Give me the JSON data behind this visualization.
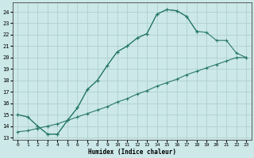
{
  "xlabel": "Humidex (Indice chaleur)",
  "bg_color": "#cce8e8",
  "grid_color": "#b0d0d0",
  "line_color": "#2a7a6a",
  "xlim": [
    -0.5,
    23.5
  ],
  "ylim": [
    12.8,
    24.8
  ],
  "xticks": [
    0,
    1,
    2,
    3,
    4,
    5,
    6,
    7,
    8,
    9,
    10,
    11,
    12,
    13,
    14,
    15,
    16,
    17,
    18,
    19,
    20,
    21,
    22,
    23
  ],
  "yticks": [
    13,
    14,
    15,
    16,
    17,
    18,
    19,
    20,
    21,
    22,
    23,
    24
  ],
  "curve1_x": [
    0,
    1,
    2,
    3,
    4,
    5,
    6,
    7,
    8,
    9,
    10,
    11,
    12,
    13,
    14,
    15,
    16,
    17,
    18
  ],
  "curve1_y": [
    15.0,
    14.8,
    14.0,
    13.3,
    13.3,
    14.5,
    15.6,
    17.2,
    18.0,
    19.3,
    20.5,
    21.0,
    21.7,
    22.1,
    23.8,
    24.2,
    24.1,
    23.6,
    22.3
  ],
  "curve2_x": [
    0,
    1,
    2,
    3,
    4,
    5,
    6,
    7,
    8,
    9,
    10,
    11,
    12,
    13,
    14,
    15,
    16,
    17,
    18,
    19,
    20,
    21,
    22,
    23
  ],
  "curve2_y": [
    15.0,
    14.8,
    14.0,
    13.3,
    13.3,
    14.5,
    15.6,
    17.2,
    18.0,
    19.3,
    20.5,
    21.0,
    21.7,
    22.1,
    23.8,
    24.2,
    24.1,
    23.6,
    22.3,
    22.2,
    21.5,
    21.5,
    20.4,
    20.0
  ],
  "curve3_x": [
    0,
    1,
    2,
    3,
    4,
    5,
    6,
    7,
    8,
    9,
    10,
    11,
    12,
    13,
    14,
    15,
    16,
    17,
    18,
    19,
    20,
    21,
    22,
    23
  ],
  "curve3_y": [
    13.5,
    13.6,
    13.8,
    14.0,
    14.2,
    14.5,
    14.8,
    15.1,
    15.4,
    15.7,
    16.1,
    16.4,
    16.8,
    17.1,
    17.5,
    17.8,
    18.1,
    18.5,
    18.8,
    19.1,
    19.4,
    19.7,
    20.0,
    20.0
  ]
}
